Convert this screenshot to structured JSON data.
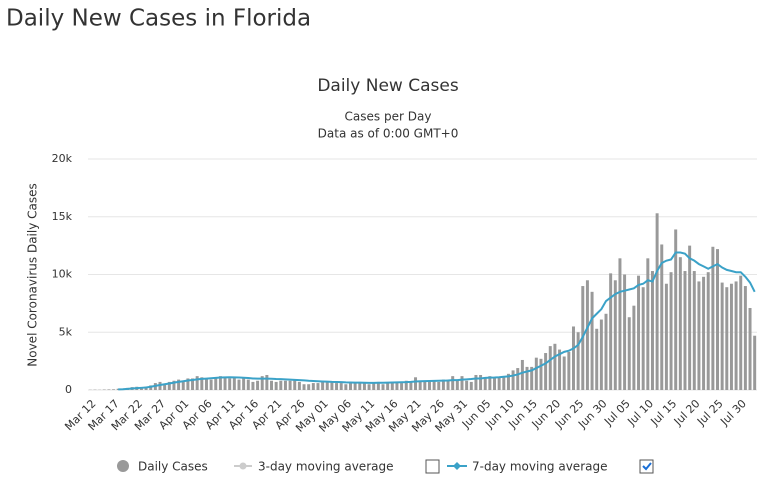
{
  "page_title": "Daily New Cases in Florida",
  "chart_data": {
    "type": "bar",
    "title": "Daily New Cases",
    "subtitle": "Cases per Day",
    "note": "Data as of 0:00 GMT+0",
    "y_label": "Novel Coronavirus Daily Cases",
    "categories": [
      "Mar 12",
      null,
      null,
      null,
      null,
      "Mar 17",
      null,
      null,
      null,
      null,
      "Mar 22",
      null,
      null,
      null,
      null,
      "Mar 27",
      null,
      null,
      null,
      null,
      "Apr 01",
      null,
      null,
      null,
      null,
      "Apr 06",
      null,
      null,
      null,
      null,
      "Apr 11",
      null,
      null,
      null,
      null,
      "Apr 16",
      null,
      null,
      null,
      null,
      "Apr 21",
      null,
      null,
      null,
      null,
      "Apr 26",
      null,
      null,
      null,
      null,
      "May 01",
      null,
      null,
      null,
      null,
      "May 06",
      null,
      null,
      null,
      null,
      "May 11",
      null,
      null,
      null,
      null,
      "May 16",
      null,
      null,
      null,
      null,
      "May 21",
      null,
      null,
      null,
      null,
      "May 26",
      null,
      null,
      null,
      null,
      "May 31",
      null,
      null,
      null,
      null,
      "Jun 05",
      null,
      null,
      null,
      null,
      "Jun 10",
      null,
      null,
      null,
      null,
      "Jun 15",
      null,
      null,
      null,
      null,
      "Jun 20",
      null,
      null,
      null,
      null,
      "Jun 25",
      null,
      null,
      null,
      null,
      "Jun 30",
      null,
      null,
      null,
      null,
      "Jul 05",
      null,
      null,
      null,
      null,
      "Jul 10",
      null,
      null,
      null,
      null,
      "Jul 15",
      null,
      null,
      null,
      null,
      "Jul 20",
      null,
      null,
      null,
      null,
      "Jul 25",
      null,
      null,
      null,
      null,
      "Jul 30",
      null,
      null,
      null
    ],
    "series": [
      {
        "name": "Daily Cases",
        "color": "#999999",
        "values": [
          20,
          30,
          20,
          40,
          50,
          60,
          110,
          120,
          180,
          250,
          280,
          200,
          300,
          400,
          600,
          700,
          500,
          700,
          800,
          900,
          800,
          1000,
          1000,
          1200,
          1100,
          1000,
          900,
          1100,
          1200,
          1100,
          1000,
          1100,
          900,
          1000,
          900,
          700,
          800,
          1200,
          1300,
          800,
          700,
          800,
          800,
          800,
          900,
          700,
          500,
          500,
          600,
          600,
          800,
          700,
          700,
          600,
          600,
          500,
          600,
          600,
          700,
          600,
          500,
          600,
          700,
          500,
          600,
          700,
          700,
          600,
          800,
          700,
          1100,
          800,
          700,
          800,
          800,
          700,
          900,
          900,
          1200,
          800,
          1200,
          800,
          700,
          1300,
          1300,
          1100,
          1200,
          1100,
          1100,
          1100,
          1400,
          1700,
          1900,
          2600,
          2000,
          2000,
          2800,
          2700,
          3200,
          3800,
          4000,
          3500,
          2900,
          3300,
          5500,
          5000,
          9000,
          9500,
          8500,
          5300,
          6100,
          6600,
          10100,
          9500,
          11400,
          10000,
          6300,
          7300,
          9900,
          8900,
          11400,
          10300,
          15300,
          12600,
          9200,
          10200,
          13900,
          11500,
          10300,
          12500,
          10300,
          9400,
          9800,
          10200,
          12400,
          12200,
          9300,
          8900,
          9200,
          9400,
          9900,
          9000,
          7100,
          4700
        ]
      },
      {
        "name": "7-day moving average",
        "color": "#3ba2c8",
        "type": "line",
        "values": [
          null,
          null,
          null,
          null,
          null,
          null,
          50,
          70,
          100,
          130,
          160,
          190,
          220,
          280,
          360,
          430,
          500,
          560,
          640,
          700,
          760,
          820,
          870,
          920,
          960,
          990,
          1020,
          1050,
          1080,
          1090,
          1100,
          1090,
          1080,
          1060,
          1040,
          1000,
          980,
          980,
          990,
          970,
          950,
          940,
          920,
          900,
          880,
          860,
          830,
          800,
          780,
          760,
          740,
          720,
          700,
          690,
          680,
          660,
          650,
          640,
          640,
          630,
          620,
          620,
          630,
          630,
          640,
          650,
          660,
          670,
          680,
          700,
          740,
          760,
          770,
          780,
          790,
          800,
          810,
          820,
          850,
          860,
          900,
          920,
          950,
          1000,
          1000,
          1050,
          1070,
          1080,
          1100,
          1150,
          1180,
          1250,
          1350,
          1500,
          1600,
          1700,
          1900,
          2100,
          2300,
          2600,
          2900,
          3100,
          3300,
          3400,
          3600,
          3900,
          4600,
          5400,
          6200,
          6600,
          7000,
          7700,
          8000,
          8300,
          8500,
          8600,
          8700,
          8800,
          9100,
          9200,
          9500,
          9400,
          10300,
          11000,
          11200,
          11300,
          11900,
          11900,
          11800,
          11400,
          11200,
          10900,
          10700,
          10500,
          10700,
          10900,
          10600,
          10400,
          10300,
          10200,
          10200,
          9800,
          9300,
          8500
        ]
      }
    ],
    "hidden_series": [
      {
        "name": "3-day moving average",
        "color": "#cccccc"
      }
    ],
    "ylim": [
      0,
      20000
    ],
    "yticks": [
      {
        "value": 0,
        "label": "0"
      },
      {
        "value": 5000,
        "label": "5k"
      },
      {
        "value": 10000,
        "label": "10k"
      },
      {
        "value": 15000,
        "label": "15k"
      },
      {
        "value": 20000,
        "label": "20k"
      }
    ],
    "grid": true
  }
}
